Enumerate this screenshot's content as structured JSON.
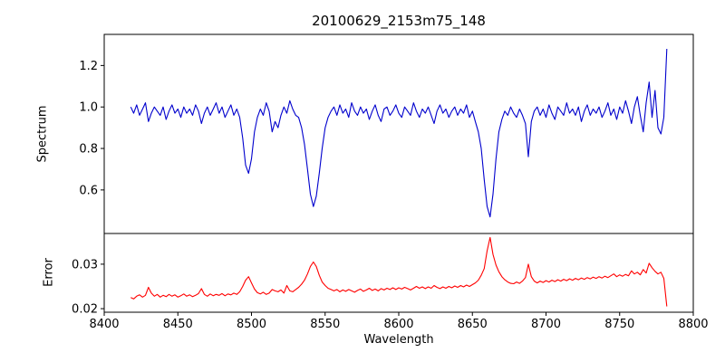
{
  "figure_title": "20100629_2153m75_148",
  "chart_data": {
    "type": "line",
    "title": "20100629_2153m75_148",
    "xlabel": "Wavelength",
    "xlim": [
      8400,
      8800
    ],
    "xticks": [
      8400,
      8450,
      8500,
      8550,
      8600,
      8650,
      8700,
      8750,
      8800
    ],
    "xtick_labels": [
      "8400",
      "8450",
      "8500",
      "8550",
      "8600",
      "8650",
      "8700",
      "8750",
      "8800"
    ],
    "grid": false,
    "legend": "none",
    "panels": [
      {
        "name": "spectrum-series",
        "ylabel": "Spectrum",
        "color": "#0000cd",
        "ylim": [
          0.39,
          1.35
        ],
        "yticks": [
          0.6,
          0.8,
          1.0,
          1.2
        ],
        "ytick_labels": [
          "0.6",
          "0.8",
          "1.0",
          "1.2"
        ],
        "x_start": 8418,
        "x_step": 2,
        "features": "absorption lines near 8498, 8542, 8662, 8688; spike to 1.28 at 8782",
        "values": [
          1.0,
          0.97,
          1.01,
          0.96,
          0.99,
          1.02,
          0.93,
          0.97,
          1.0,
          0.98,
          0.96,
          1.0,
          0.94,
          0.98,
          1.01,
          0.97,
          0.99,
          0.95,
          1.0,
          0.97,
          0.99,
          0.96,
          1.01,
          0.98,
          0.92,
          0.97,
          1.0,
          0.96,
          0.99,
          1.02,
          0.97,
          1.0,
          0.95,
          0.98,
          1.01,
          0.96,
          0.99,
          0.95,
          0.85,
          0.72,
          0.68,
          0.75,
          0.88,
          0.95,
          0.99,
          0.96,
          1.02,
          0.98,
          0.88,
          0.93,
          0.9,
          0.96,
          1.0,
          0.97,
          1.03,
          0.99,
          0.96,
          0.95,
          0.9,
          0.82,
          0.7,
          0.58,
          0.52,
          0.57,
          0.68,
          0.8,
          0.9,
          0.95,
          0.98,
          1.0,
          0.96,
          1.01,
          0.97,
          0.99,
          0.95,
          1.02,
          0.98,
          0.96,
          1.0,
          0.97,
          0.99,
          0.94,
          0.98,
          1.01,
          0.96,
          0.93,
          0.99,
          1.0,
          0.96,
          0.98,
          1.01,
          0.97,
          0.95,
          1.0,
          0.98,
          0.96,
          1.02,
          0.98,
          0.95,
          0.99,
          0.97,
          1.0,
          0.96,
          0.92,
          0.98,
          1.01,
          0.97,
          0.99,
          0.95,
          0.98,
          1.0,
          0.96,
          0.99,
          0.97,
          1.01,
          0.95,
          0.98,
          0.93,
          0.88,
          0.8,
          0.65,
          0.52,
          0.47,
          0.58,
          0.75,
          0.88,
          0.94,
          0.98,
          0.96,
          1.0,
          0.97,
          0.95,
          0.99,
          0.96,
          0.92,
          0.76,
          0.93,
          0.98,
          1.0,
          0.96,
          0.99,
          0.95,
          1.01,
          0.97,
          0.94,
          1.0,
          0.98,
          0.96,
          1.02,
          0.97,
          0.99,
          0.96,
          1.0,
          0.93,
          0.98,
          1.01,
          0.96,
          0.99,
          0.97,
          1.0,
          0.95,
          0.98,
          1.02,
          0.96,
          0.99,
          0.94,
          1.0,
          0.97,
          1.03,
          0.98,
          0.92,
          1.0,
          1.05,
          0.96,
          0.88,
          1.02,
          1.12,
          0.95,
          1.08,
          0.9,
          0.87,
          0.95,
          1.28
        ]
      },
      {
        "name": "error-series",
        "ylabel": "Error",
        "color": "#ff0000",
        "ylim": [
          0.0192,
          0.0369
        ],
        "yticks": [
          0.02,
          0.03
        ],
        "ytick_labels": [
          "0.02",
          "0.03"
        ],
        "x_start": 8418,
        "x_step": 2,
        "features": "baseline ~0.023 rising to ~0.028; peaks near 8498, 8542, 8662, 8688; drop at end",
        "values": [
          0.0225,
          0.0222,
          0.0228,
          0.0231,
          0.0226,
          0.023,
          0.0248,
          0.0235,
          0.0228,
          0.0232,
          0.0226,
          0.023,
          0.0227,
          0.0232,
          0.0228,
          0.0231,
          0.0226,
          0.0229,
          0.0233,
          0.0228,
          0.0231,
          0.0227,
          0.023,
          0.0234,
          0.0245,
          0.0232,
          0.0228,
          0.0233,
          0.0229,
          0.0232,
          0.023,
          0.0234,
          0.0229,
          0.0233,
          0.0231,
          0.0235,
          0.0232,
          0.0238,
          0.025,
          0.0264,
          0.0272,
          0.0258,
          0.0244,
          0.0236,
          0.0233,
          0.0237,
          0.0232,
          0.0235,
          0.0243,
          0.024,
          0.0238,
          0.0242,
          0.0235,
          0.0252,
          0.024,
          0.0238,
          0.0243,
          0.0248,
          0.0255,
          0.0264,
          0.0278,
          0.0295,
          0.0305,
          0.0295,
          0.0275,
          0.026,
          0.0252,
          0.0246,
          0.0243,
          0.024,
          0.0243,
          0.0238,
          0.0242,
          0.0239,
          0.0243,
          0.024,
          0.0237,
          0.0241,
          0.0244,
          0.0239,
          0.0242,
          0.0246,
          0.0241,
          0.0244,
          0.024,
          0.0245,
          0.0242,
          0.0246,
          0.0243,
          0.0247,
          0.0243,
          0.0247,
          0.0244,
          0.0248,
          0.0245,
          0.0242,
          0.0246,
          0.025,
          0.0246,
          0.0249,
          0.0245,
          0.0249,
          0.0246,
          0.0252,
          0.0248,
          0.0245,
          0.0249,
          0.0246,
          0.025,
          0.0247,
          0.0251,
          0.0248,
          0.0252,
          0.0249,
          0.0253,
          0.025,
          0.0254,
          0.0258,
          0.0264,
          0.0275,
          0.029,
          0.033,
          0.036,
          0.0322,
          0.0298,
          0.0283,
          0.0272,
          0.0265,
          0.026,
          0.0257,
          0.0256,
          0.026,
          0.0257,
          0.0262,
          0.027,
          0.03,
          0.0272,
          0.0262,
          0.0258,
          0.0262,
          0.0259,
          0.0263,
          0.026,
          0.0264,
          0.0261,
          0.0265,
          0.0262,
          0.0266,
          0.0263,
          0.0267,
          0.0264,
          0.0268,
          0.0265,
          0.0269,
          0.0266,
          0.027,
          0.0267,
          0.0271,
          0.0268,
          0.0272,
          0.0269,
          0.0273,
          0.027,
          0.0274,
          0.0278,
          0.0272,
          0.0276,
          0.0273,
          0.0277,
          0.0274,
          0.0285,
          0.0278,
          0.0282,
          0.0276,
          0.0288,
          0.028,
          0.0302,
          0.0292,
          0.0284,
          0.0278,
          0.0282,
          0.0268,
          0.0205
        ]
      }
    ],
    "colors": {
      "axis": "#000000",
      "background": "#ffffff"
    }
  }
}
